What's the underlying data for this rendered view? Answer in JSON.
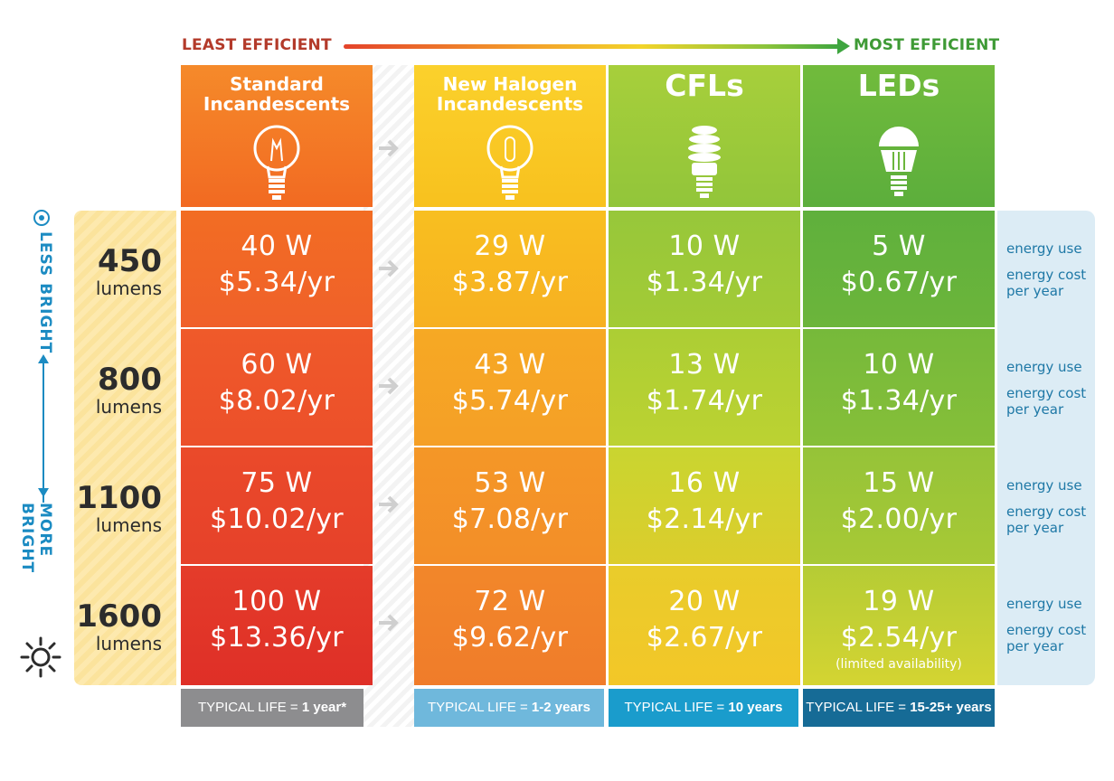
{
  "efficiency": {
    "least_label": "LEAST EFFICIENT",
    "most_label": "MOST EFFICIENT"
  },
  "brightness": {
    "less_label": "LESS BRIGHT",
    "more_label": "MORE BRIGHT"
  },
  "columns": [
    {
      "title": "Standard Incandescents",
      "icon": "incandescent-bulb-icon",
      "life_prefix": "TYPICAL LIFE = ",
      "life_value": "1 year*"
    },
    {
      "title": "New Halogen Incandescents",
      "icon": "halogen-bulb-icon",
      "life_prefix": "TYPICAL LIFE = ",
      "life_value": "1-2 years"
    },
    {
      "title": "CFLs",
      "icon": "cfl-bulb-icon",
      "life_prefix": "TYPICAL LIFE = ",
      "life_value": "10 years"
    },
    {
      "title": "LEDs",
      "icon": "led-bulb-icon",
      "life_prefix": "TYPICAL LIFE = ",
      "life_value": "15-25+ years"
    }
  ],
  "rows": [
    {
      "lumens": "450",
      "unit": "lumens",
      "cells": [
        {
          "watts": "40 W",
          "cost": "$5.34/yr"
        },
        {
          "watts": "29 W",
          "cost": "$3.87/yr"
        },
        {
          "watts": "10 W",
          "cost": "$1.34/yr"
        },
        {
          "watts": "5 W",
          "cost": "$0.67/yr"
        }
      ]
    },
    {
      "lumens": "800",
      "unit": "lumens",
      "cells": [
        {
          "watts": "60 W",
          "cost": "$8.02/yr"
        },
        {
          "watts": "43 W",
          "cost": "$5.74/yr"
        },
        {
          "watts": "13 W",
          "cost": "$1.74/yr"
        },
        {
          "watts": "10 W",
          "cost": "$1.34/yr"
        }
      ]
    },
    {
      "lumens": "1100",
      "unit": "lumens",
      "cells": [
        {
          "watts": "75 W",
          "cost": "$10.02/yr"
        },
        {
          "watts": "53 W",
          "cost": "$7.08/yr"
        },
        {
          "watts": "16 W",
          "cost": "$2.14/yr"
        },
        {
          "watts": "15 W",
          "cost": "$2.00/yr"
        }
      ]
    },
    {
      "lumens": "1600",
      "unit": "lumens",
      "cells": [
        {
          "watts": "100 W",
          "cost": "$13.36/yr"
        },
        {
          "watts": "72 W",
          "cost": "$9.62/yr"
        },
        {
          "watts": "20 W",
          "cost": "$2.67/yr"
        },
        {
          "watts": "19 W",
          "cost": "$2.54/yr",
          "note": "(limited availability)"
        }
      ]
    }
  ],
  "legend": {
    "energy_use": "energy use",
    "energy_cost": "energy cost per year"
  },
  "colors": {
    "incandescent_top": "#f26a22",
    "incandescent_bottom": "#e02f26",
    "halogen_top": "#f9c11f",
    "halogen_bottom": "#f17d2a",
    "cfl_top": "#92c53a",
    "cfl_bottom": "#f2c928",
    "led_top": "#5cae3c",
    "led_bottom": "#d6d632",
    "accent_blue": "#1b8bc2"
  }
}
